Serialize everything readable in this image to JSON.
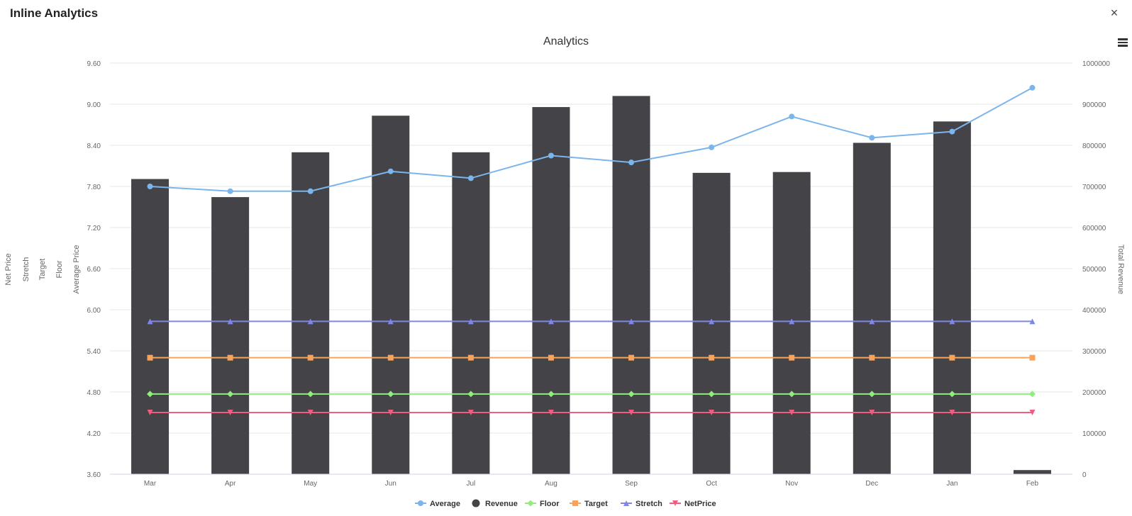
{
  "window": {
    "title": "Inline Analytics",
    "close_label": "×"
  },
  "toolbar": {
    "menu_icon": "hamburger-menu-icon"
  },
  "colors": {
    "Average": "#7cb5ec",
    "Revenue": "#434348",
    "Floor": "#90ed7d",
    "Target": "#f7a35c",
    "Stretch": "#8085e9",
    "NetPrice": "#f15c80"
  },
  "chart_data": {
    "type": "bar",
    "title": "Analytics",
    "categories": [
      "Mar",
      "Apr",
      "May",
      "Jun",
      "Jul",
      "Aug",
      "Sep",
      "Oct",
      "Nov",
      "Dec",
      "Jan",
      "Feb"
    ],
    "left_axis": {
      "ticks": [
        "3.60",
        "4.20",
        "4.80",
        "5.40",
        "6.00",
        "6.60",
        "7.20",
        "7.80",
        "8.40",
        "9.00",
        "9.60"
      ],
      "min": 3.6,
      "max": 9.6
    },
    "right_axis": {
      "ticks": [
        "0",
        "100000",
        "200000",
        "300000",
        "400000",
        "500000",
        "600000",
        "700000",
        "800000",
        "900000",
        "1000000"
      ],
      "min": 0,
      "max": 1000000,
      "label": "Total Revenue"
    },
    "left_axis_labels": [
      "Net Price",
      "Stretch",
      "Target",
      "Floor",
      "Average Price"
    ],
    "legend_position": "bottom-center",
    "series": [
      {
        "name": "Average",
        "kind": "line",
        "marker": "circle",
        "axis": "left",
        "values": [
          7.8,
          7.73,
          7.73,
          8.02,
          7.92,
          8.25,
          8.15,
          8.37,
          8.82,
          8.51,
          8.6,
          9.24
        ]
      },
      {
        "name": "Revenue",
        "kind": "bar",
        "marker": "circle",
        "axis": "right",
        "values": [
          718000,
          674000,
          783000,
          872000,
          783000,
          893000,
          920000,
          733000,
          735000,
          806000,
          858000,
          10000
        ]
      },
      {
        "name": "Floor",
        "kind": "line",
        "marker": "diamond",
        "axis": "left",
        "values": [
          4.77,
          4.77,
          4.77,
          4.77,
          4.77,
          4.77,
          4.77,
          4.77,
          4.77,
          4.77,
          4.77,
          4.77
        ]
      },
      {
        "name": "Target",
        "kind": "line",
        "marker": "square",
        "axis": "left",
        "values": [
          5.3,
          5.3,
          5.3,
          5.3,
          5.3,
          5.3,
          5.3,
          5.3,
          5.3,
          5.3,
          5.3,
          5.3
        ]
      },
      {
        "name": "Stretch",
        "kind": "line",
        "marker": "triangle",
        "axis": "left",
        "values": [
          5.83,
          5.83,
          5.83,
          5.83,
          5.83,
          5.83,
          5.83,
          5.83,
          5.83,
          5.83,
          5.83,
          5.83
        ]
      },
      {
        "name": "NetPrice",
        "kind": "line",
        "marker": "triangle-down",
        "axis": "left",
        "values": [
          4.5,
          4.5,
          4.5,
          4.5,
          4.5,
          4.5,
          4.5,
          4.5,
          4.5,
          4.5,
          4.5,
          4.5
        ]
      }
    ]
  }
}
